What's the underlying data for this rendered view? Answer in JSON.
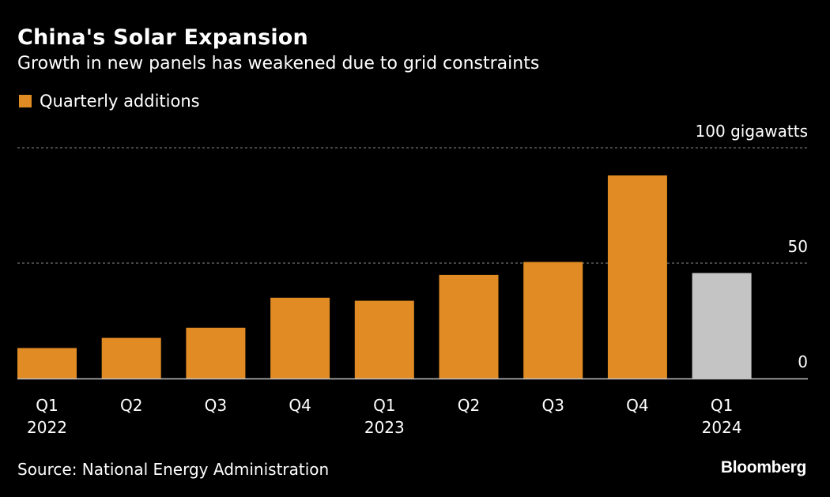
{
  "header": {
    "title": "China's Solar Expansion",
    "subtitle": "Growth in new panels has weakened due to grid constraints"
  },
  "footer": {
    "source": "Source: National Energy Administration",
    "brand": "Bloomberg"
  },
  "colors": {
    "background": "#000000",
    "bar": "#E08B24",
    "bar_highlight": "#C4C4C4",
    "gridline": "#8C8C8C",
    "axis": "#BFBFBF",
    "text": "#FFFFFF"
  },
  "chart_data": {
    "type": "bar",
    "title": "China's Solar Expansion",
    "subtitle": "Growth in new panels has weakened due to grid constraints",
    "legend": [
      {
        "label": "Quarterly additions",
        "color": "#E08B24"
      }
    ],
    "legend_position": "top-left",
    "ylabel": "gigawatts",
    "ylim": [
      0,
      100
    ],
    "y_ticks": [
      {
        "value": 0,
        "label": "0"
      },
      {
        "value": 50,
        "label": "50"
      },
      {
        "value": 100,
        "label": "100 gigawatts"
      }
    ],
    "grid": true,
    "categories": [
      {
        "quarter": "Q1",
        "year": "2022"
      },
      {
        "quarter": "Q2",
        "year": ""
      },
      {
        "quarter": "Q3",
        "year": ""
      },
      {
        "quarter": "Q4",
        "year": ""
      },
      {
        "quarter": "Q1",
        "year": "2023"
      },
      {
        "quarter": "Q2",
        "year": ""
      },
      {
        "quarter": "Q3",
        "year": ""
      },
      {
        "quarter": "Q4",
        "year": ""
      },
      {
        "quarter": "Q1",
        "year": "2024"
      }
    ],
    "series": [
      {
        "name": "Quarterly additions",
        "values": [
          13.2,
          17.6,
          22.0,
          35.0,
          33.7,
          44.9,
          50.5,
          88.0,
          45.7
        ],
        "highlight_index": 8
      }
    ]
  }
}
